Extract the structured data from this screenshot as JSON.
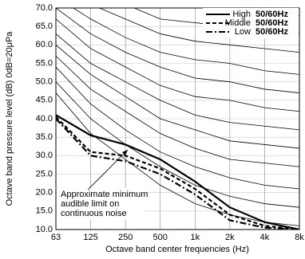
{
  "chart_data": {
    "type": "line",
    "x_label": "Octave band center frequencies (Hz)",
    "y_label": "Octave band pressure level (dB) 0dB=20μPa",
    "categories": [
      "63",
      "125",
      "250",
      "500",
      "1k",
      "2k",
      "4k",
      "8k"
    ],
    "ylim": [
      10,
      70
    ],
    "yticks": [
      {
        "value": 10,
        "label": "10.0"
      },
      {
        "value": 15,
        "label": "15.0"
      },
      {
        "value": 20,
        "label": "20.0"
      },
      {
        "value": 25,
        "label": "25.0"
      },
      {
        "value": 30,
        "label": "30.0"
      },
      {
        "value": 35,
        "label": "35.0"
      },
      {
        "value": 40,
        "label": "40.0"
      },
      {
        "value": 45,
        "label": "45.0"
      },
      {
        "value": 50,
        "label": "50.0"
      },
      {
        "value": 55,
        "label": "55.0"
      },
      {
        "value": 60,
        "label": "60.0"
      },
      {
        "value": 65,
        "label": "65.0"
      },
      {
        "value": 70,
        "label": "70.0"
      }
    ],
    "grid": true,
    "legend": "upper right",
    "series": [
      {
        "name": "High",
        "frequency": "50/60Hz",
        "color": "#000000",
        "style": "solid",
        "values": [
          41,
          35.5,
          33,
          29,
          23,
          16,
          12,
          10
        ]
      },
      {
        "name": "Middle",
        "frequency": "50/60Hz",
        "color": "#000000",
        "style": "dashed",
        "values": [
          40.5,
          31,
          30,
          26.5,
          21,
          14,
          11,
          10
        ]
      },
      {
        "name": "Low",
        "frequency": "50/60Hz",
        "color": "#000000",
        "style": "dashdot",
        "values": [
          40,
          30,
          28.5,
          25,
          19.5,
          12.5,
          10.5,
          10
        ]
      }
    ],
    "reference_curves": [
      [
        47,
        36,
        29,
        22,
        17,
        14,
        12,
        11
      ],
      [
        50,
        40,
        33,
        27,
        22,
        19,
        17,
        16
      ],
      [
        54,
        44,
        37,
        31,
        27,
        24,
        22,
        21
      ],
      [
        57,
        48,
        42,
        36,
        32,
        29,
        28,
        27
      ],
      [
        60,
        52,
        46,
        40,
        37,
        34,
        33,
        32
      ],
      [
        63,
        55,
        50,
        45,
        41,
        39,
        38,
        37
      ],
      [
        67,
        59,
        54,
        49,
        46,
        45,
        43,
        42
      ],
      [
        70,
        63,
        58,
        54,
        51,
        50,
        48,
        47
      ],
      [
        73,
        67,
        62,
        58,
        56,
        55,
        53,
        52
      ],
      [
        76,
        71,
        67,
        63,
        61,
        60,
        59,
        58
      ],
      [
        80,
        75,
        71,
        67,
        66,
        65,
        64,
        63
      ],
      [
        83,
        79,
        75,
        72,
        71,
        70,
        69,
        68
      ]
    ],
    "annotation": [
      "Approximate minimum",
      "audible limit on",
      "continuous noise"
    ]
  }
}
